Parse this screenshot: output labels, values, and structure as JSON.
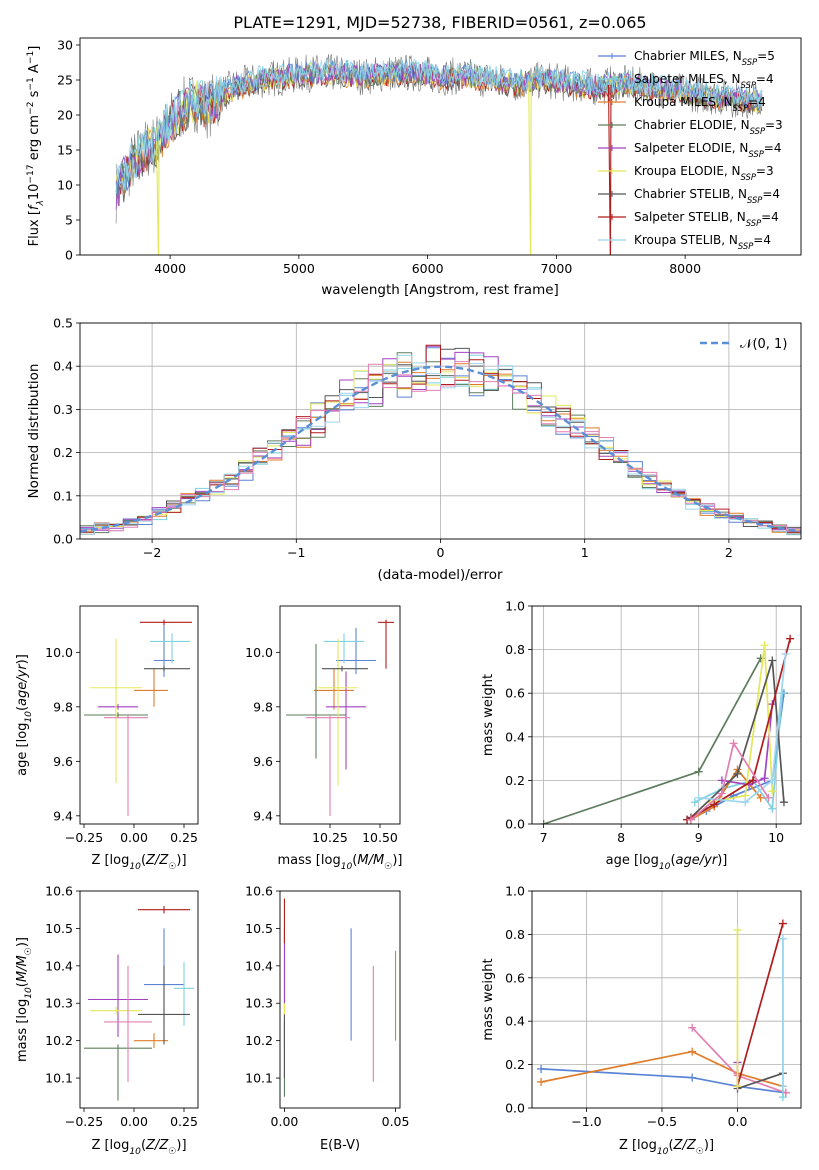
{
  "title": "PLATE=1291, MJD=52738, FIBERID=0561, z=0.065",
  "colors": {
    "chabrier_miles": "#5b84d6",
    "salpeter_miles": "#7fd1e0",
    "kroupa_miles": "#e07d2a",
    "chabrier_elodie": "#5e7d5e",
    "salpeter_elodie": "#a343c2",
    "kroupa_elodie": "#e3e85a",
    "chabrier_stelib": "#555555",
    "salpeter_stelib": "#b01c1c",
    "kroupa_stelib": "#9fd6ee",
    "pink": "#e37fb2",
    "normal_curve": "#5b8fd6"
  },
  "chart_data": [
    {
      "panel": "spectrum",
      "type": "line",
      "xlabel": "wavelength [Angstrom, rest frame]",
      "ylabel": "Flux [fλ10⁻¹⁷ erg cm⁻² s⁻¹ A⁻¹]",
      "xlim": [
        3300,
        8900
      ],
      "ylim": [
        0,
        31
      ],
      "xticks": [
        4000,
        5000,
        6000,
        7000,
        8000
      ],
      "yticks": [
        0,
        5,
        10,
        15,
        20,
        25,
        30
      ],
      "legend_position": "top-right",
      "series": [
        {
          "name": "Chabrier MILES, N",
          "sub": "SSP",
          "suffix": "=5",
          "key": "chabrier_miles"
        },
        {
          "name": "Salpeter MILES, N",
          "sub": "SSP",
          "suffix": "=4",
          "key": "salpeter_miles"
        },
        {
          "name": "Kroupa MILES, N",
          "sub": "SSP",
          "suffix": "=4",
          "key": "kroupa_miles"
        },
        {
          "name": "Chabrier ELODIE, N",
          "sub": "SSP",
          "suffix": "=3",
          "key": "chabrier_elodie"
        },
        {
          "name": "Salpeter ELODIE, N",
          "sub": "SSP",
          "suffix": "=4",
          "key": "salpeter_elodie"
        },
        {
          "name": "Kroupa ELODIE, N",
          "sub": "SSP",
          "suffix": "=3",
          "key": "kroupa_elodie"
        },
        {
          "name": "Chabrier STELIB, N",
          "sub": "SSP",
          "suffix": "=4",
          "key": "chabrier_stelib"
        },
        {
          "name": "Salpeter STELIB, N",
          "sub": "SSP",
          "suffix": "=4",
          "key": "salpeter_stelib"
        },
        {
          "name": "Kroupa STELIB, N",
          "sub": "SSP",
          "suffix": "=4",
          "key": "kroupa_stelib"
        }
      ],
      "continuum": {
        "x": [
          3580,
          3700,
          3800,
          3900,
          4000,
          4100,
          4200,
          4300,
          4400,
          4500,
          4700,
          4900,
          5100,
          5300,
          5500,
          5700,
          5900,
          6100,
          6300,
          6500,
          6700,
          6900,
          7100,
          7300,
          7500,
          7700,
          7900,
          8100,
          8300,
          8500,
          8600
        ],
        "y": [
          9,
          13,
          15,
          16,
          19,
          21,
          22,
          21,
          23,
          24,
          25,
          25.5,
          26,
          26,
          25.5,
          26,
          26,
          25.5,
          25.5,
          25,
          24.5,
          25,
          24.5,
          24,
          24.5,
          24,
          23.5,
          23,
          22.5,
          22,
          22
        ]
      },
      "dropouts": [
        [
          3910,
          "kroupa_elodie"
        ],
        [
          6800,
          "kroupa_elodie"
        ],
        [
          7420,
          "salpeter_stelib"
        ]
      ]
    },
    {
      "panel": "residual_histogram",
      "type": "histogram",
      "xlabel": "(data-model)/error",
      "ylabel": "Normed distribution",
      "xlim": [
        -2.5,
        2.5
      ],
      "ylim": [
        0,
        0.5
      ],
      "xticks": [
        -2,
        -1,
        0,
        1,
        2
      ],
      "yticks": [
        0.0,
        0.1,
        0.2,
        0.3,
        0.4,
        0.5
      ],
      "legend": "𝒩(0, 1)",
      "legend_position": "top-right",
      "bin_width": 0.1,
      "grid": true
    },
    {
      "panel": "age_vs_Z",
      "type": "errorbar",
      "xlabel": "Z [log₁₀(Z/Z☉)]",
      "ylabel": "age  [log₁₀(age/yr)]",
      "xlim": [
        -0.27,
        0.32
      ],
      "ylim": [
        9.37,
        10.17
      ],
      "xticks": [
        -0.25,
        0,
        0.25
      ],
      "xticklabels": [
        "−0.25",
        "0.00",
        "0.25"
      ],
      "yticks": [
        9.4,
        9.6,
        9.8,
        10.0
      ],
      "points": [
        {
          "key": "chabrier_miles",
          "x": 0.15,
          "xerr": [
            0.05,
            0.05
          ],
          "y": 9.97,
          "yerr": [
            0.06,
            0.13
          ]
        },
        {
          "key": "salpeter_miles",
          "x": 0.19,
          "xerr": [
            0.11,
            0.09
          ],
          "y": 10.04,
          "yerr": [
            0.08,
            0.03
          ]
        },
        {
          "key": "kroupa_miles",
          "x": 0.1,
          "xerr": [
            0.1,
            0.07
          ],
          "y": 9.86,
          "yerr": [
            0.06,
            0.08
          ]
        },
        {
          "key": "chabrier_elodie",
          "x": -0.08,
          "xerr": [
            0.17,
            0.15
          ],
          "y": 9.77,
          "yerr": [
            0.01,
            0.01
          ]
        },
        {
          "key": "salpeter_elodie",
          "x": -0.08,
          "xerr": [
            0.1,
            0.1
          ],
          "y": 9.8,
          "yerr": [
            0.01,
            0.01
          ]
        },
        {
          "key": "kroupa_elodie",
          "x": -0.09,
          "xerr": [
            0.13,
            0.13
          ],
          "y": 9.87,
          "yerr": [
            0.35,
            0.18
          ]
        },
        {
          "key": "chabrier_stelib",
          "x": 0.15,
          "xerr": [
            0.1,
            0.13
          ],
          "y": 9.94,
          "yerr": [
            0.01,
            0.01
          ]
        },
        {
          "key": "salpeter_stelib",
          "x": 0.15,
          "xerr": [
            0.12,
            0.14
          ],
          "y": 10.11,
          "yerr": [
            0.01,
            0.01
          ]
        },
        {
          "key": "pink",
          "x": -0.03,
          "xerr": [
            0.12,
            0.1
          ],
          "y": 9.76,
          "yerr": [
            0.36,
            0.01
          ]
        }
      ]
    },
    {
      "panel": "age_vs_mass",
      "type": "errorbar",
      "xlabel": "mass [log₁₀(M/M☉)]",
      "ylabel": "",
      "xlim": [
        10.0,
        10.6
      ],
      "ylim": [
        9.37,
        10.17
      ],
      "xticks": [
        10.25,
        10.5
      ],
      "xticklabels": [
        "10.25",
        "10.50"
      ],
      "yticks": [
        9.4,
        9.6,
        9.8,
        10.0
      ],
      "points": [
        {
          "key": "chabrier_miles",
          "x": 10.38,
          "xerr": [
            0.1,
            0.1
          ],
          "y": 9.97,
          "yerr": [
            0.05,
            0.12
          ]
        },
        {
          "key": "salpeter_miles",
          "x": 10.32,
          "xerr": [
            0.1,
            0.1
          ],
          "y": 10.04,
          "yerr": [
            0.08,
            0.03
          ]
        },
        {
          "key": "kroupa_miles",
          "x": 10.27,
          "xerr": [
            0.1,
            0.1
          ],
          "y": 9.86,
          "yerr": [
            0.07,
            0.08
          ]
        },
        {
          "key": "chabrier_elodie",
          "x": 10.18,
          "xerr": [
            0.15,
            0.15
          ],
          "y": 9.77,
          "yerr": [
            0.16,
            0.26
          ]
        },
        {
          "key": "salpeter_elodie",
          "x": 10.33,
          "xerr": [
            0.1,
            0.1
          ],
          "y": 9.8,
          "yerr": [
            0.23,
            0.13
          ]
        },
        {
          "key": "kroupa_elodie",
          "x": 10.29,
          "xerr": [
            0.1,
            0.1
          ],
          "y": 9.87,
          "yerr": [
            0.36,
            0.18
          ]
        },
        {
          "key": "chabrier_stelib",
          "x": 10.31,
          "xerr": [
            0.1,
            0.13
          ],
          "y": 9.94,
          "yerr": [
            0.01,
            0.01
          ]
        },
        {
          "key": "salpeter_stelib",
          "x": 10.53,
          "xerr": [
            0.04,
            0.04
          ],
          "y": 10.11,
          "yerr": [
            0.17,
            0.01
          ]
        },
        {
          "key": "pink",
          "x": 10.25,
          "xerr": [
            0.12,
            0.1
          ],
          "y": 9.76,
          "yerr": [
            0.36,
            0.01
          ]
        }
      ]
    },
    {
      "panel": "weight_vs_age",
      "type": "line",
      "xlabel": "age  [log₁₀(age/yr)]",
      "ylabel": "mass weight",
      "xlim": [
        6.85,
        10.32
      ],
      "ylim": [
        0,
        1.0
      ],
      "xticks": [
        7,
        8,
        9,
        10
      ],
      "yticks": [
        0.0,
        0.2,
        0.4,
        0.6,
        0.8,
        1.0
      ],
      "grid": true,
      "series": [
        {
          "key": "chabrier_miles",
          "x": [
            8.85,
            9.1,
            9.45,
            9.95,
            10.1
          ],
          "y": [
            0.02,
            0.06,
            0.13,
            0.2,
            0.6
          ]
        },
        {
          "key": "salpeter_miles",
          "x": [
            8.95,
            9.3,
            9.7,
            9.95,
            10.08
          ],
          "y": [
            0.1,
            0.16,
            0.2,
            0.07,
            0.6
          ]
        },
        {
          "key": "kroupa_miles",
          "x": [
            8.9,
            9.2,
            9.5,
            9.8
          ],
          "y": [
            0.02,
            0.08,
            0.25,
            0.12
          ]
        },
        {
          "key": "chabrier_elodie",
          "x": [
            7.0,
            9.0,
            9.8
          ],
          "y": [
            0.0,
            0.24,
            0.76
          ]
        },
        {
          "key": "salpeter_elodie",
          "x": [
            9.3,
            9.65,
            9.85,
            9.95
          ],
          "y": [
            0.2,
            0.18,
            0.21,
            0.55
          ]
        },
        {
          "key": "kroupa_elodie",
          "x": [
            9.15,
            9.6,
            9.85,
            9.95
          ],
          "y": [
            0.1,
            0.13,
            0.82,
            0.15
          ]
        },
        {
          "key": "chabrier_stelib",
          "x": [
            8.9,
            9.5,
            9.95,
            10.1
          ],
          "y": [
            0.03,
            0.23,
            0.75,
            0.1
          ]
        },
        {
          "key": "salpeter_stelib",
          "x": [
            8.85,
            9.2,
            9.7,
            10.18
          ],
          "y": [
            0.02,
            0.09,
            0.2,
            0.85
          ]
        },
        {
          "key": "kroupa_stelib",
          "x": [
            9.0,
            9.6,
            9.95,
            10.12
          ],
          "y": [
            0.12,
            0.1,
            0.2,
            0.78
          ]
        },
        {
          "key": "pink",
          "x": [
            8.9,
            9.3,
            9.45,
            9.9
          ],
          "y": [
            0.02,
            0.14,
            0.37,
            0.12
          ]
        }
      ]
    },
    {
      "panel": "mass_vs_Z",
      "type": "errorbar",
      "xlabel": "Z [log₁₀(Z/Z☉)]",
      "ylabel": "mass [log₁₀(M/M☉)]",
      "xlim": [
        -0.27,
        0.32
      ],
      "ylim": [
        10.02,
        10.6
      ],
      "xticks": [
        -0.25,
        0,
        0.25
      ],
      "xticklabels": [
        "−0.25",
        "0.00",
        "0.25"
      ],
      "yticks": [
        10.1,
        10.2,
        10.3,
        10.4,
        10.5,
        10.6
      ],
      "points": [
        {
          "key": "chabrier_miles",
          "x": 0.15,
          "xerr": [
            0.1,
            0.1
          ],
          "y": 10.35,
          "yerr": [
            0.15,
            0.15
          ]
        },
        {
          "key": "salpeter_miles",
          "x": 0.25,
          "xerr": [
            0.05,
            0.05
          ],
          "y": 10.34,
          "yerr": [
            0.1,
            0.07
          ]
        },
        {
          "key": "kroupa_miles",
          "x": 0.1,
          "xerr": [
            0.1,
            0.07
          ],
          "y": 10.2,
          "yerr": [
            0.02,
            0.02
          ]
        },
        {
          "key": "chabrier_elodie",
          "x": -0.08,
          "xerr": [
            0.17,
            0.17
          ],
          "y": 10.18,
          "yerr": [
            0.14,
            0.01
          ]
        },
        {
          "key": "salpeter_elodie",
          "x": -0.08,
          "xerr": [
            0.15,
            0.15
          ],
          "y": 10.31,
          "yerr": [
            0.1,
            0.12
          ]
        },
        {
          "key": "kroupa_elodie",
          "x": -0.09,
          "xerr": [
            0.13,
            0.13
          ],
          "y": 10.28,
          "yerr": [
            0.01,
            0.01
          ]
        },
        {
          "key": "chabrier_stelib",
          "x": 0.15,
          "xerr": [
            0.13,
            0.13
          ],
          "y": 10.27,
          "yerr": [
            0.08,
            0.13
          ]
        },
        {
          "key": "salpeter_stelib",
          "x": 0.15,
          "xerr": [
            0.13,
            0.13
          ],
          "y": 10.55,
          "yerr": [
            0.01,
            0.01
          ]
        },
        {
          "key": "pink",
          "x": -0.03,
          "xerr": [
            0.12,
            0.12
          ],
          "y": 10.25,
          "yerr": [
            0.16,
            0.15
          ]
        }
      ]
    },
    {
      "panel": "mass_vs_ebv",
      "type": "errorbar",
      "xlabel": "E(B-V)",
      "ylabel": "",
      "xlim": [
        -0.002,
        0.052
      ],
      "ylim": [
        10.02,
        10.6
      ],
      "xticks": [
        0.0,
        0.05
      ],
      "xticklabels": [
        "0.00",
        "0.05"
      ],
      "yticks": [
        10.1,
        10.2,
        10.3,
        10.4,
        10.5,
        10.6
      ],
      "points": [
        {
          "key": "chabrier_miles",
          "x": 0.03,
          "xerr": [
            0,
            0
          ],
          "y": 10.35,
          "yerr": [
            0.15,
            0.15
          ]
        },
        {
          "key": "salpeter_miles",
          "x": 0.0,
          "xerr": [
            0,
            0
          ],
          "y": 10.3,
          "yerr": [
            0.12,
            0.12
          ]
        },
        {
          "key": "kroupa_miles",
          "x": 0.05,
          "xerr": [
            0,
            0
          ],
          "y": 10.3,
          "yerr": [
            0.1,
            0.14
          ]
        },
        {
          "key": "chabrier_elodie",
          "x": 0.0,
          "xerr": [
            0,
            0
          ],
          "y": 10.15,
          "yerr": [
            0.1,
            0.1
          ]
        },
        {
          "key": "salpeter_elodie",
          "x": 0.0,
          "xerr": [
            0,
            0
          ],
          "y": 10.4,
          "yerr": [
            0.1,
            0.1
          ]
        },
        {
          "key": "kroupa_elodie",
          "x": 0.0,
          "xerr": [
            0,
            0
          ],
          "y": 10.2,
          "yerr": [
            0.1,
            0.1
          ]
        },
        {
          "key": "chabrier_stelib",
          "x": 0.0,
          "xerr": [
            0,
            0
          ],
          "y": 10.2,
          "yerr": [
            0.1,
            0.07
          ]
        },
        {
          "key": "salpeter_stelib",
          "x": 0.0,
          "xerr": [
            0,
            0
          ],
          "y": 10.52,
          "yerr": [
            0.06,
            0.06
          ]
        },
        {
          "key": "pink",
          "x": 0.04,
          "xerr": [
            0,
            0
          ],
          "y": 10.25,
          "yerr": [
            0.16,
            0.15
          ]
        }
      ]
    },
    {
      "panel": "weight_vs_Z",
      "type": "line",
      "xlabel": "Z [log₁₀(Z/Z☉)]",
      "ylabel": "mass weight",
      "xlim": [
        -1.36,
        0.42
      ],
      "ylim": [
        0,
        1.0
      ],
      "xticks": [
        -1.0,
        -0.5,
        0.0
      ],
      "xticklabels": [
        "−1.0",
        "−0.5",
        "0.0"
      ],
      "yticks": [
        0.0,
        0.2,
        0.4,
        0.6,
        0.8,
        1.0
      ],
      "grid": true,
      "series": [
        {
          "key": "chabrier_miles",
          "x": [
            -1.3,
            -0.3,
            0.0,
            0.32
          ],
          "y": [
            0.18,
            0.14,
            0.1,
            0.07
          ]
        },
        {
          "key": "kroupa_miles",
          "x": [
            -1.3,
            -0.3,
            0.0,
            0.3
          ],
          "y": [
            0.12,
            0.26,
            0.16,
            0.1
          ]
        },
        {
          "key": "pink",
          "x": [
            -0.3,
            0.0,
            0.32
          ],
          "y": [
            0.37,
            0.15,
            0.07
          ]
        },
        {
          "key": "salpeter_stelib",
          "x": [
            0.0,
            0.3
          ],
          "y": [
            0.1,
            0.85
          ]
        },
        {
          "key": "chabrier_stelib",
          "x": [
            0.0,
            0.3
          ],
          "y": [
            0.09,
            0.16
          ]
        },
        {
          "key": "salpeter_elodie",
          "x": [
            0.0,
            0.0
          ],
          "y": [
            0.1,
            0.21
          ]
        },
        {
          "key": "kroupa_elodie",
          "x": [
            0.0,
            0.0
          ],
          "y": [
            0.1,
            0.82
          ]
        },
        {
          "key": "salpeter_miles",
          "x": [
            0.3,
            0.3
          ],
          "y": [
            0.05,
            0.78
          ]
        },
        {
          "key": "kroupa_stelib",
          "x": [
            0.3,
            0.3
          ],
          "y": [
            0.1,
            0.78
          ]
        }
      ]
    }
  ]
}
